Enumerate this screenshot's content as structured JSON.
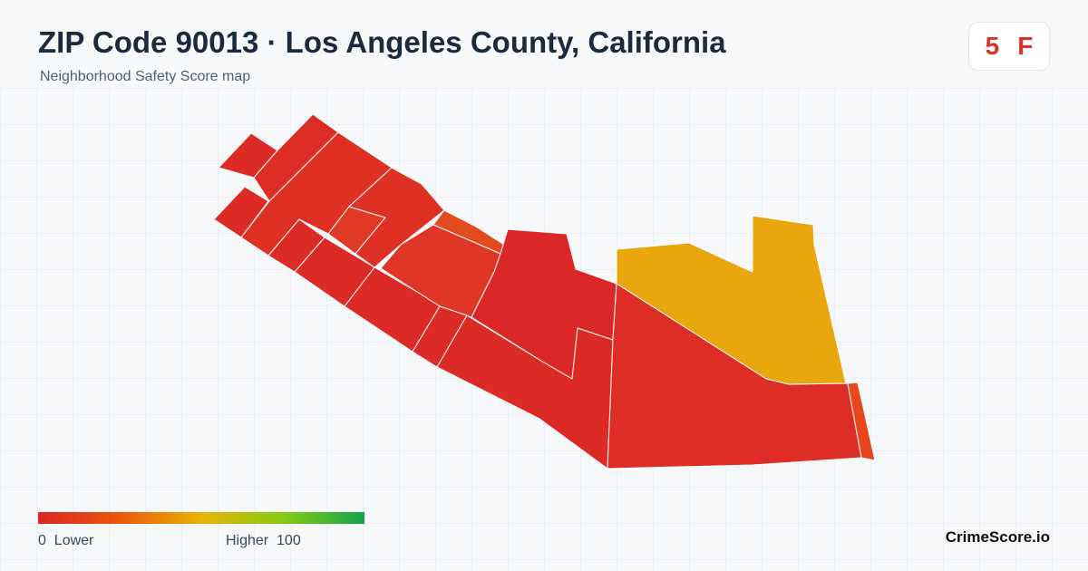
{
  "header": {
    "title": "ZIP Code 90013 · Los Angeles County, California",
    "subtitle": "Neighborhood Safety Score map"
  },
  "badge": {
    "score": 5,
    "grade": "F"
  },
  "legend": {
    "min": 0,
    "min_label": "Lower",
    "max_label": "Higher",
    "max": 100
  },
  "footer": {
    "brand": "CrimeScore.io"
  }
}
